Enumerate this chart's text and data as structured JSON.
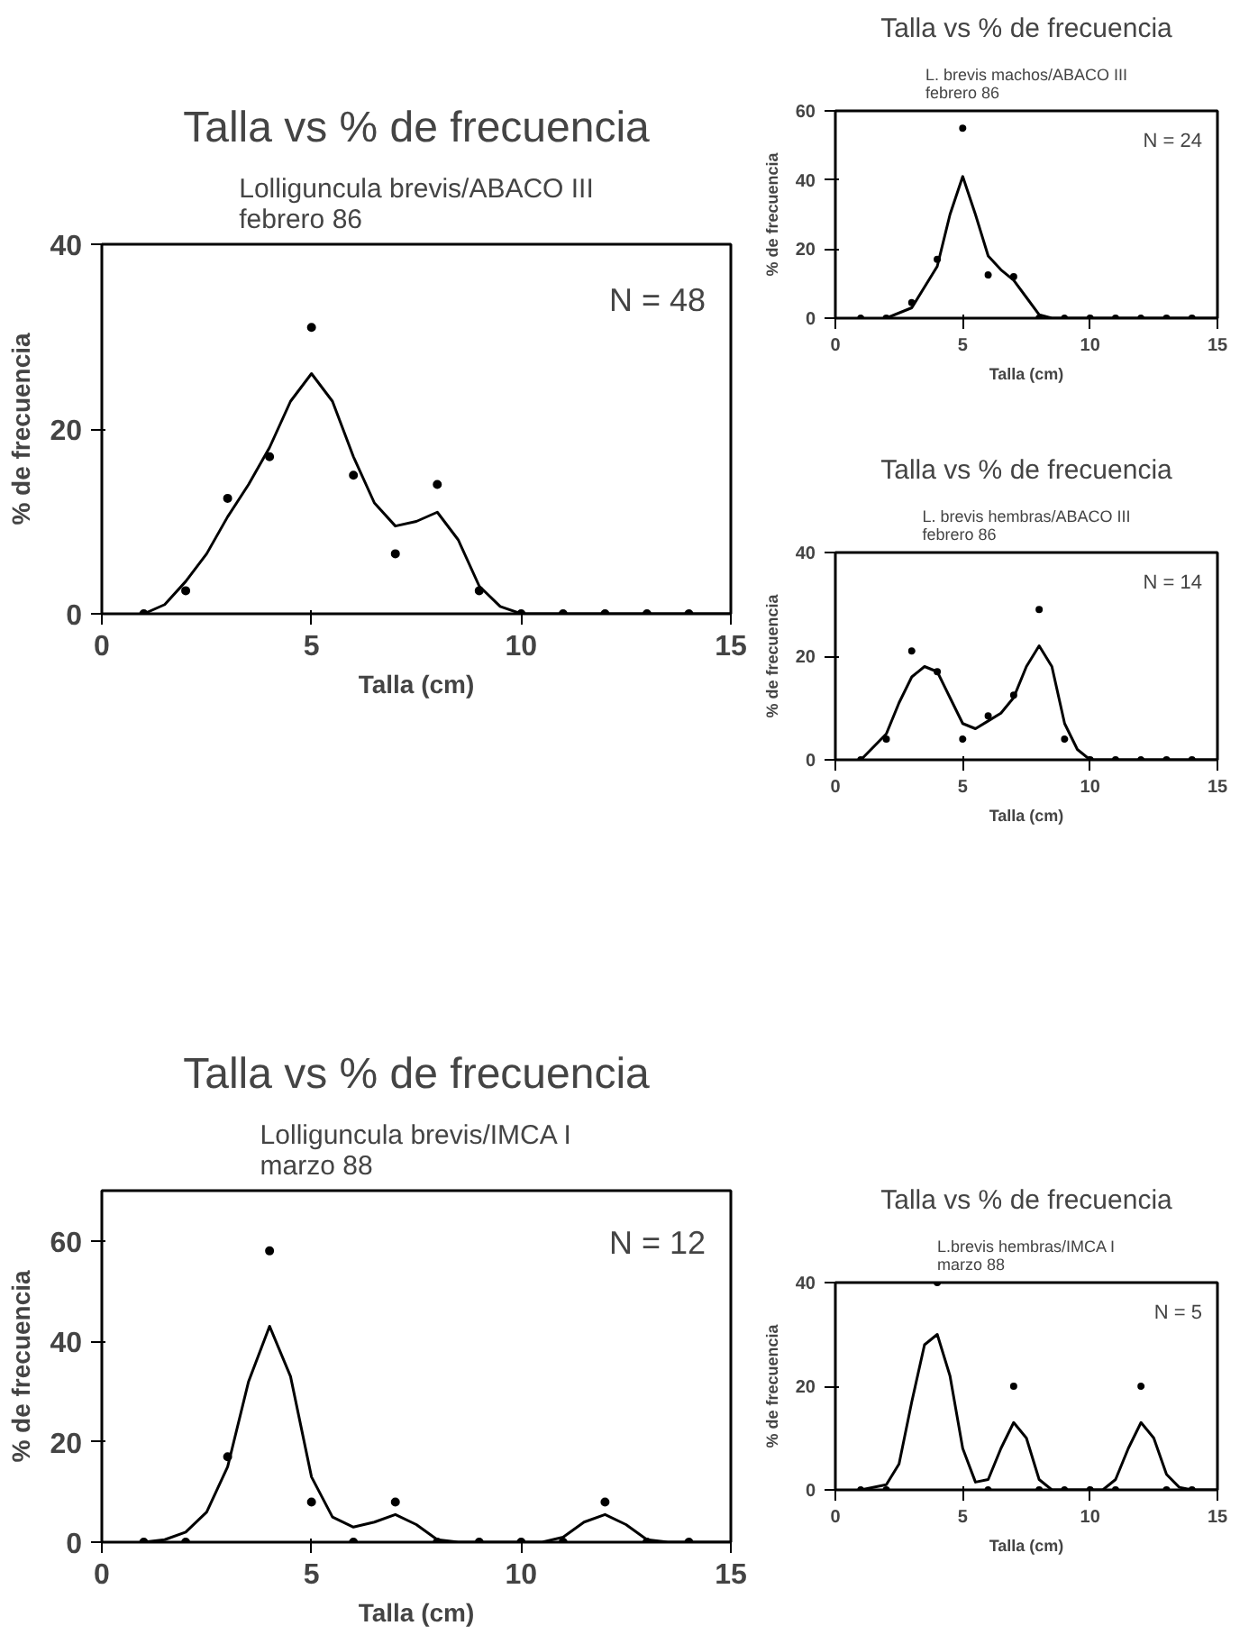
{
  "chart_data": [
    {
      "type": "line",
      "title": "Talla vs % de frecuencia",
      "subtitle": "Lolliguncula brevis/ABACO III\nfebrero 86",
      "xlabel": "Talla (cm)",
      "ylabel": "% de frecuencia",
      "xlim": [
        0,
        15
      ],
      "ylim": [
        0,
        40
      ],
      "xticks": [
        0,
        5,
        10,
        15
      ],
      "yticks": [
        0,
        20,
        40
      ],
      "annotations": [
        "N = 48"
      ],
      "series": [
        {
          "type": "scatter",
          "marker": "circle",
          "color": "#000000",
          "x": [
            1,
            2,
            3,
            4,
            5,
            6,
            7,
            8,
            9,
            10,
            11,
            12,
            13,
            14
          ],
          "values": [
            0,
            2.5,
            12.5,
            17,
            31,
            15,
            6.5,
            14,
            2.5,
            0,
            0,
            0,
            0,
            0
          ]
        },
        {
          "color": "#000000",
          "x": [
            1,
            1.5,
            2,
            2.5,
            3,
            3.5,
            4,
            4.5,
            5,
            5.5,
            6,
            6.5,
            7,
            7.5,
            8,
            8.5,
            9,
            9.5,
            10,
            15
          ],
          "values": [
            0,
            1,
            3.5,
            6.5,
            10.5,
            14,
            18,
            23,
            26,
            23,
            17,
            12,
            9.5,
            10,
            11,
            8,
            3,
            0.8,
            0,
            0
          ]
        }
      ]
    },
    {
      "type": "line",
      "title": "Talla vs % de frecuencia",
      "subtitle": "L. brevis machos/ABACO III\nfebrero 86",
      "xlabel": "Talla (cm)",
      "ylabel": "% de frecuencia",
      "xlim": [
        0,
        15
      ],
      "ylim": [
        0,
        60
      ],
      "xticks": [
        0,
        5,
        10,
        15
      ],
      "yticks": [
        0,
        20,
        40,
        60
      ],
      "annotations": [
        "N = 24"
      ],
      "series": [
        {
          "type": "scatter",
          "marker": "circle",
          "color": "#000000",
          "x": [
            1,
            2,
            3,
            4,
            5,
            6,
            7,
            8,
            9,
            10,
            11,
            12,
            13,
            14
          ],
          "values": [
            0,
            0,
            4.5,
            17,
            55,
            12.5,
            12,
            0,
            0,
            0,
            0,
            0,
            0,
            0
          ]
        },
        {
          "color": "#000000",
          "x": [
            2,
            3,
            4,
            4.5,
            5,
            5.5,
            6,
            6.5,
            7,
            7.5,
            8,
            8.5,
            15
          ],
          "values": [
            0,
            3,
            15,
            30,
            41,
            30,
            18,
            14,
            11,
            6,
            1,
            0,
            0
          ]
        }
      ]
    },
    {
      "type": "line",
      "title": "Talla vs % de frecuencia",
      "subtitle": "L. brevis hembras/ABACO III\nfebrero 86",
      "xlabel": "Talla (cm)",
      "ylabel": "% de frecuencia",
      "xlim": [
        0,
        15
      ],
      "ylim": [
        0,
        40
      ],
      "xticks": [
        0,
        5,
        10,
        15
      ],
      "yticks": [
        0,
        20,
        40
      ],
      "annotations": [
        "N = 14"
      ],
      "series": [
        {
          "type": "scatter",
          "marker": "circle",
          "color": "#000000",
          "x": [
            1,
            2,
            3,
            4,
            5,
            6,
            7,
            8,
            9,
            10,
            11,
            12,
            13,
            14
          ],
          "values": [
            0,
            4,
            21,
            17,
            4,
            8.5,
            12.5,
            29,
            4,
            0,
            0,
            0,
            0,
            0
          ]
        },
        {
          "color": "#000000",
          "x": [
            1,
            2,
            2.5,
            3,
            3.5,
            4,
            4.5,
            5,
            5.5,
            6,
            6.5,
            7,
            7.5,
            8,
            8.5,
            9,
            9.5,
            10,
            15
          ],
          "values": [
            0,
            5,
            11,
            16,
            18,
            17,
            12,
            7,
            6,
            7.5,
            9,
            12,
            18,
            22,
            18,
            7,
            2,
            0,
            0
          ]
        }
      ]
    },
    {
      "type": "line",
      "title": "Talla vs % de frecuencia",
      "subtitle": "Lolliguncula brevis/IMCA I\nmarzo 88",
      "xlabel": "Talla (cm)",
      "ylabel": "% de frecuencia",
      "xlim": [
        0,
        15
      ],
      "ylim": [
        0,
        70
      ],
      "xticks": [
        0,
        5,
        10,
        15
      ],
      "yticks": [
        0,
        20,
        40,
        60
      ],
      "annotations": [
        "N = 12"
      ],
      "series": [
        {
          "type": "scatter",
          "marker": "circle",
          "color": "#000000",
          "x": [
            1,
            2,
            3,
            4,
            5,
            6,
            7,
            8,
            9,
            10,
            11,
            12,
            13,
            14
          ],
          "values": [
            0,
            0,
            17,
            58,
            8,
            0,
            8,
            0,
            0,
            0,
            0,
            8,
            0,
            0
          ]
        },
        {
          "color": "#000000",
          "x": [
            1,
            1.5,
            2,
            2.5,
            3,
            3.5,
            4,
            4.5,
            5,
            5.5,
            6,
            6.5,
            7,
            7.5,
            8,
            8.5,
            10.5,
            11,
            11.5,
            12,
            12.5,
            13,
            13.5,
            15
          ],
          "values": [
            0,
            0.5,
            2,
            6,
            15,
            32,
            43,
            33,
            13,
            5,
            3,
            4,
            5.5,
            3.5,
            0.5,
            0,
            0,
            1,
            4,
            5.5,
            3.5,
            0.5,
            0,
            0
          ]
        }
      ]
    },
    {
      "type": "line",
      "title": "Talla vs % de frecuencia",
      "subtitle": "L.brevis hembras/IMCA I\nmarzo 88",
      "xlabel": "Talla (cm)",
      "ylabel": "% de frecuencia",
      "xlim": [
        0,
        15
      ],
      "ylim": [
        0,
        40
      ],
      "xticks": [
        0,
        5,
        10,
        15
      ],
      "yticks": [
        0,
        20,
        40
      ],
      "annotations": [
        "N = 5"
      ],
      "series": [
        {
          "type": "scatter",
          "marker": "circle",
          "color": "#000000",
          "x": [
            1,
            2,
            4,
            6,
            7,
            8,
            9,
            10,
            11,
            12,
            13,
            14
          ],
          "values": [
            0,
            0,
            40,
            0,
            20,
            0,
            0,
            0,
            0,
            20,
            0,
            0
          ]
        },
        {
          "color": "#000000",
          "x": [
            1,
            2,
            2.5,
            3,
            3.5,
            4,
            4.5,
            5,
            5.5,
            6,
            6.5,
            7,
            7.5,
            8,
            8.5,
            10.5,
            11,
            11.5,
            12,
            12.5,
            13,
            13.5,
            14,
            15
          ],
          "values": [
            0,
            1,
            5,
            17,
            28,
            30,
            22,
            8,
            1.5,
            2,
            8,
            13,
            10,
            2,
            0,
            0,
            2,
            8,
            13,
            10,
            3,
            0.5,
            0,
            0
          ]
        }
      ]
    }
  ]
}
